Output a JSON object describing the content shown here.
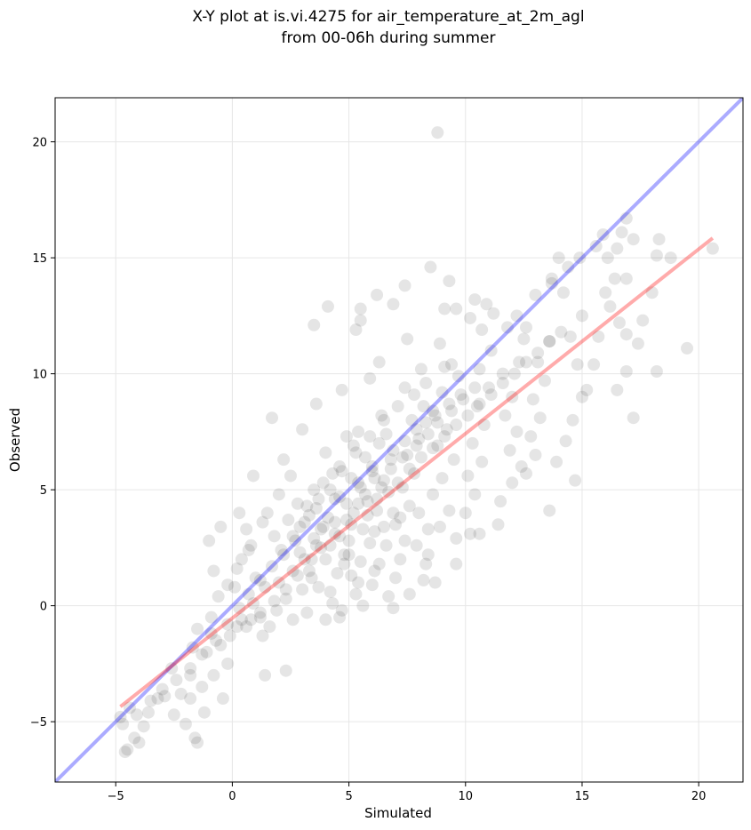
{
  "chart_data": {
    "type": "scatter",
    "title_lines": [
      "X-Y plot at is.vi.4275 for air_temperature_at_2m_agl",
      "from 00-06h during summer"
    ],
    "xlabel": "Simulated",
    "ylabel": "Observed",
    "xlim": [
      -7.6,
      21.9
    ],
    "ylim": [
      -7.6,
      21.9
    ],
    "xticks": [
      -5,
      0,
      5,
      10,
      15,
      20
    ],
    "yticks": [
      -5,
      0,
      5,
      10,
      15,
      20
    ],
    "xtick_labels": [
      "−5",
      "0",
      "5",
      "10",
      "15",
      "20"
    ],
    "ytick_labels": [
      "−5",
      "0",
      "5",
      "10",
      "15",
      "20"
    ],
    "grid": true,
    "point_color": "#000000",
    "point_alpha": 0.1,
    "one_to_one_line": {
      "color": "#0000ff",
      "alpha": 0.33,
      "x": [
        -7.6,
        21.9
      ],
      "y": [
        -7.6,
        21.9
      ]
    },
    "regression_line": {
      "color": "#ff0000",
      "alpha": 0.33,
      "x": [
        -4.8,
        20.6
      ],
      "y": [
        -4.35,
        15.85
      ]
    },
    "points": [
      [
        -4.6,
        -6.3
      ],
      [
        -4.5,
        -6.2
      ],
      [
        -4.2,
        -5.7
      ],
      [
        -4.0,
        -5.9
      ],
      [
        -3.8,
        -5.2
      ],
      [
        -4.7,
        -5.1
      ],
      [
        -4.8,
        -4.8
      ],
      [
        -4.4,
        -4.4
      ],
      [
        -3.6,
        -4.6
      ],
      [
        -3.2,
        -4.0
      ],
      [
        -2.9,
        -3.9
      ],
      [
        -2.5,
        -4.7
      ],
      [
        -2.2,
        -3.8
      ],
      [
        -2.0,
        -5.1
      ],
      [
        -1.8,
        -4.0
      ],
      [
        -1.6,
        -5.7
      ],
      [
        -1.5,
        -5.9
      ],
      [
        -1.2,
        -4.6
      ],
      [
        -1.3,
        -3.5
      ],
      [
        -0.8,
        -3.0
      ],
      [
        -0.4,
        -4.0
      ],
      [
        -0.2,
        -2.5
      ],
      [
        -1.8,
        -3.0
      ],
      [
        -2.6,
        -2.7
      ],
      [
        -1.1,
        -2.0
      ],
      [
        -0.5,
        -1.7
      ],
      [
        -0.1,
        -1.3
      ],
      [
        0.4,
        -0.6
      ],
      [
        -0.9,
        -0.5
      ],
      [
        -1.5,
        -1.0
      ],
      [
        -1.7,
        -1.8
      ],
      [
        -0.9,
        -1.2
      ],
      [
        -0.6,
        0.4
      ],
      [
        -0.2,
        0.9
      ],
      [
        0.2,
        1.6
      ],
      [
        -0.8,
        1.5
      ],
      [
        -1.0,
        2.8
      ],
      [
        -0.5,
        3.4
      ],
      [
        0.3,
        4.0
      ],
      [
        0.9,
        5.6
      ],
      [
        0.6,
        3.3
      ],
      [
        0.4,
        2.0
      ],
      [
        0.8,
        2.6
      ],
      [
        1.0,
        1.2
      ],
      [
        1.4,
        0.8
      ],
      [
        0.9,
        0.1
      ],
      [
        1.2,
        -0.5
      ],
      [
        1.6,
        -0.9
      ],
      [
        1.9,
        -0.2
      ],
      [
        2.3,
        0.3
      ],
      [
        2.0,
        1.0
      ],
      [
        2.6,
        1.5
      ],
      [
        2.2,
        2.2
      ],
      [
        1.8,
        3.0
      ],
      [
        2.4,
        3.7
      ],
      [
        1.5,
        4.0
      ],
      [
        2.0,
        4.8
      ],
      [
        1.3,
        3.6
      ],
      [
        0.7,
        2.4
      ],
      [
        0.1,
        0.8
      ],
      [
        0.6,
        -0.9
      ],
      [
        1.3,
        -1.3
      ],
      [
        1.4,
        -3.0
      ],
      [
        2.3,
        -2.8
      ],
      [
        2.6,
        -0.6
      ],
      [
        3.2,
        -0.3
      ],
      [
        3.0,
        0.7
      ],
      [
        3.4,
        1.2
      ],
      [
        3.1,
        2.0
      ],
      [
        3.6,
        2.6
      ],
      [
        3.8,
        3.3
      ],
      [
        3.3,
        3.9
      ],
      [
        2.8,
        4.4
      ],
      [
        3.5,
        5.0
      ],
      [
        2.5,
        5.6
      ],
      [
        2.2,
        6.3
      ],
      [
        1.7,
        8.1
      ],
      [
        3.0,
        7.6
      ],
      [
        3.6,
        8.7
      ],
      [
        3.5,
        12.1
      ],
      [
        4.1,
        12.9
      ],
      [
        4.0,
        6.6
      ],
      [
        4.3,
        5.7
      ],
      [
        4.6,
        4.7
      ],
      [
        4.4,
        3.6
      ],
      [
        4.2,
        2.6
      ],
      [
        4.8,
        2.2
      ],
      [
        4.5,
        1.4
      ],
      [
        4.2,
        0.6
      ],
      [
        4.7,
        -0.2
      ],
      [
        4.0,
        -0.6
      ],
      [
        5.3,
        0.5
      ],
      [
        5.1,
        1.3
      ],
      [
        5.5,
        1.9
      ],
      [
        5.0,
        2.8
      ],
      [
        5.6,
        3.3
      ],
      [
        5.2,
        4.0
      ],
      [
        5.8,
        4.5
      ],
      [
        5.4,
        5.3
      ],
      [
        6.0,
        5.8
      ],
      [
        5.7,
        6.4
      ],
      [
        6.3,
        7.0
      ],
      [
        5.4,
        7.5
      ],
      [
        4.7,
        9.3
      ],
      [
        5.3,
        11.9
      ],
      [
        5.5,
        12.8
      ],
      [
        5.5,
        12.3
      ],
      [
        6.3,
        10.5
      ],
      [
        5.9,
        9.8
      ],
      [
        6.4,
        8.2
      ],
      [
        6.6,
        7.4
      ],
      [
        6.8,
        6.3
      ],
      [
        6.5,
        5.4
      ],
      [
        6.2,
        4.6
      ],
      [
        6.9,
        4.0
      ],
      [
        6.1,
        3.2
      ],
      [
        6.6,
        2.6
      ],
      [
        6.3,
        1.8
      ],
      [
        7.0,
        1.2
      ],
      [
        6.7,
        0.4
      ],
      [
        7.2,
        2.0
      ],
      [
        7.4,
        2.8
      ],
      [
        7.0,
        3.5
      ],
      [
        7.6,
        4.3
      ],
      [
        7.3,
        5.1
      ],
      [
        7.8,
        5.7
      ],
      [
        7.5,
        6.5
      ],
      [
        8.0,
        7.2
      ],
      [
        7.7,
        8.0
      ],
      [
        8.2,
        8.6
      ],
      [
        7.4,
        9.4
      ],
      [
        8.1,
        10.2
      ],
      [
        7.5,
        11.5
      ],
      [
        7.4,
        13.8
      ],
      [
        6.9,
        13.0
      ],
      [
        6.2,
        13.4
      ],
      [
        8.8,
        20.4
      ],
      [
        8.5,
        14.6
      ],
      [
        9.3,
        14.0
      ],
      [
        9.1,
        12.8
      ],
      [
        8.9,
        11.3
      ],
      [
        9.4,
        10.4
      ],
      [
        9.0,
        9.2
      ],
      [
        8.6,
        8.4
      ],
      [
        9.2,
        7.6
      ],
      [
        8.8,
        6.9
      ],
      [
        9.5,
        6.3
      ],
      [
        9.0,
        5.5
      ],
      [
        8.6,
        4.8
      ],
      [
        9.3,
        4.1
      ],
      [
        8.9,
        3.4
      ],
      [
        9.6,
        2.9
      ],
      [
        8.4,
        2.2
      ],
      [
        8.2,
        1.1
      ],
      [
        8.7,
        1.0
      ],
      [
        9.6,
        1.8
      ],
      [
        10.2,
        3.1
      ],
      [
        10.6,
        3.1
      ],
      [
        10.0,
        4.0
      ],
      [
        10.4,
        4.8
      ],
      [
        10.1,
        5.6
      ],
      [
        10.7,
        6.2
      ],
      [
        10.3,
        7.0
      ],
      [
        10.8,
        7.8
      ],
      [
        10.5,
        8.6
      ],
      [
        11.0,
        9.4
      ],
      [
        10.6,
        10.2
      ],
      [
        11.1,
        11.0
      ],
      [
        10.7,
        11.9
      ],
      [
        11.2,
        12.6
      ],
      [
        10.9,
        13.0
      ],
      [
        10.4,
        13.2
      ],
      [
        11.6,
        10.0
      ],
      [
        12.0,
        9.0
      ],
      [
        11.7,
        8.2
      ],
      [
        12.2,
        7.5
      ],
      [
        11.9,
        6.7
      ],
      [
        12.4,
        6.0
      ],
      [
        12.0,
        5.3
      ],
      [
        11.5,
        4.5
      ],
      [
        11.4,
        3.5
      ],
      [
        12.6,
        5.7
      ],
      [
        13.0,
        6.5
      ],
      [
        12.8,
        7.3
      ],
      [
        13.2,
        8.1
      ],
      [
        12.9,
        8.9
      ],
      [
        13.4,
        9.7
      ],
      [
        13.1,
        10.5
      ],
      [
        13.6,
        11.4
      ],
      [
        12.6,
        12.0
      ],
      [
        12.2,
        12.5
      ],
      [
        13.0,
        13.4
      ],
      [
        13.7,
        14.1
      ],
      [
        14.0,
        15.0
      ],
      [
        14.4,
        14.6
      ],
      [
        14.9,
        15.0
      ],
      [
        15.0,
        12.5
      ],
      [
        14.5,
        11.6
      ],
      [
        14.8,
        10.4
      ],
      [
        15.2,
        9.3
      ],
      [
        15.0,
        9.0
      ],
      [
        14.6,
        8.0
      ],
      [
        14.3,
        7.1
      ],
      [
        14.7,
        5.4
      ],
      [
        13.6,
        4.1
      ],
      [
        13.9,
        6.2
      ],
      [
        15.5,
        10.4
      ],
      [
        15.7,
        11.6
      ],
      [
        16.0,
        13.5
      ],
      [
        16.4,
        14.1
      ],
      [
        16.1,
        15.0
      ],
      [
        16.5,
        15.4
      ],
      [
        16.9,
        16.7
      ],
      [
        16.7,
        16.1
      ],
      [
        17.2,
        15.8
      ],
      [
        16.9,
        14.1
      ],
      [
        16.2,
        12.9
      ],
      [
        16.6,
        12.2
      ],
      [
        16.9,
        11.7
      ],
      [
        17.4,
        11.3
      ],
      [
        16.9,
        10.1
      ],
      [
        16.5,
        9.3
      ],
      [
        17.2,
        8.1
      ],
      [
        17.6,
        12.3
      ],
      [
        18.2,
        10.1
      ],
      [
        18.2,
        15.1
      ],
      [
        18.3,
        15.8
      ],
      [
        18.0,
        13.5
      ],
      [
        18.8,
        15.0
      ],
      [
        19.5,
        11.1
      ],
      [
        20.6,
        15.4
      ],
      [
        15.6,
        15.5
      ],
      [
        15.9,
        16.0
      ],
      [
        14.2,
        13.5
      ],
      [
        13.7,
        13.9
      ],
      [
        12.5,
        11.5
      ],
      [
        11.8,
        12.0
      ],
      [
        12.3,
        10.5
      ],
      [
        9.6,
        12.8
      ],
      [
        10.2,
        12.4
      ],
      [
        4.9,
        7.3
      ],
      [
        5.2,
        6.9
      ],
      [
        4.6,
        6.0
      ],
      [
        3.9,
        5.3
      ],
      [
        3.7,
        4.6
      ],
      [
        3.2,
        4.3
      ],
      [
        2.9,
        3.4
      ],
      [
        2.7,
        2.8
      ],
      [
        2.9,
        2.3
      ],
      [
        3.3,
        1.5
      ],
      [
        3.7,
        0.8
      ],
      [
        4.3,
        0.1
      ],
      [
        4.6,
        -0.5
      ],
      [
        5.6,
        0.0
      ],
      [
        6.0,
        0.9
      ],
      [
        6.9,
        -0.1
      ],
      [
        7.6,
        0.5
      ],
      [
        8.3,
        1.8
      ],
      [
        7.9,
        2.6
      ],
      [
        8.4,
        3.3
      ],
      [
        8.0,
        4.0
      ],
      [
        7.2,
        3.8
      ],
      [
        6.5,
        3.4
      ],
      [
        5.9,
        2.7
      ],
      [
        5.0,
        2.2
      ],
      [
        4.6,
        3.0
      ],
      [
        4.1,
        3.8
      ],
      [
        4.9,
        4.4
      ],
      [
        5.5,
        5.1
      ],
      [
        6.1,
        5.5
      ],
      [
        6.8,
        5.9
      ],
      [
        7.3,
        6.4
      ],
      [
        7.9,
        6.9
      ],
      [
        8.4,
        7.4
      ],
      [
        8.8,
        7.9
      ],
      [
        9.4,
        8.4
      ],
      [
        9.9,
        8.9
      ],
      [
        10.4,
        9.4
      ],
      [
        9.7,
        9.9
      ],
      [
        9.1,
        10.3
      ],
      [
        8.3,
        9.6
      ],
      [
        7.8,
        9.1
      ],
      [
        7.1,
        8.6
      ],
      [
        6.5,
        8.0
      ],
      [
        5.9,
        7.3
      ],
      [
        5.3,
        6.6
      ],
      [
        4.7,
        5.8
      ],
      [
        4.2,
        5.0
      ],
      [
        3.6,
        4.2
      ],
      [
        3.1,
        3.6
      ],
      [
        2.6,
        3.0
      ],
      [
        2.1,
        2.4
      ],
      [
        1.7,
        1.7
      ],
      [
        1.2,
        1.1
      ],
      [
        0.7,
        0.5
      ],
      [
        0.3,
        -0.1
      ],
      [
        -0.2,
        -0.8
      ],
      [
        -0.7,
        -1.5
      ],
      [
        -1.3,
        -2.1
      ],
      [
        -1.8,
        -2.7
      ],
      [
        -2.4,
        -3.2
      ],
      [
        -3.0,
        -3.6
      ],
      [
        -3.5,
        -4.1
      ],
      [
        -4.1,
        -4.7
      ],
      [
        5.8,
        3.9
      ],
      [
        6.2,
        4.1
      ],
      [
        5.1,
        3.5
      ],
      [
        4.4,
        3.1
      ],
      [
        3.8,
        2.5
      ],
      [
        3.4,
        2.0
      ],
      [
        2.8,
        1.3
      ],
      [
        2.3,
        0.7
      ],
      [
        1.8,
        0.2
      ],
      [
        1.2,
        -0.3
      ],
      [
        0.8,
        -0.6
      ],
      [
        0.2,
        -0.9
      ],
      [
        6.7,
        4.9
      ],
      [
        7.1,
        5.3
      ],
      [
        7.6,
        5.9
      ],
      [
        8.1,
        6.4
      ],
      [
        8.6,
        6.8
      ],
      [
        9.1,
        7.3
      ],
      [
        9.6,
        7.8
      ],
      [
        10.1,
        8.2
      ],
      [
        10.6,
        8.7
      ],
      [
        11.1,
        9.1
      ],
      [
        11.6,
        9.6
      ],
      [
        12.1,
        10.0
      ],
      [
        12.6,
        10.5
      ],
      [
        13.1,
        10.9
      ],
      [
        13.6,
        11.4
      ],
      [
        14.1,
        11.8
      ],
      [
        5.4,
        4.4
      ],
      [
        4.9,
        3.7
      ],
      [
        5.7,
        4.8
      ],
      [
        6.4,
        5.1
      ],
      [
        6.0,
        6.0
      ],
      [
        5.1,
        5.5
      ],
      [
        4.4,
        4.6
      ],
      [
        3.9,
        3.4
      ],
      [
        3.5,
        2.9
      ],
      [
        6.9,
        6.7
      ],
      [
        7.4,
        7.1
      ],
      [
        7.9,
        7.6
      ],
      [
        8.3,
        7.9
      ],
      [
        8.7,
        8.2
      ],
      [
        9.3,
        8.7
      ],
      [
        9.8,
        9.1
      ],
      [
        4.0,
        2.0
      ],
      [
        4.8,
        1.8
      ],
      [
        5.4,
        1.0
      ],
      [
        6.1,
        1.5
      ]
    ]
  }
}
